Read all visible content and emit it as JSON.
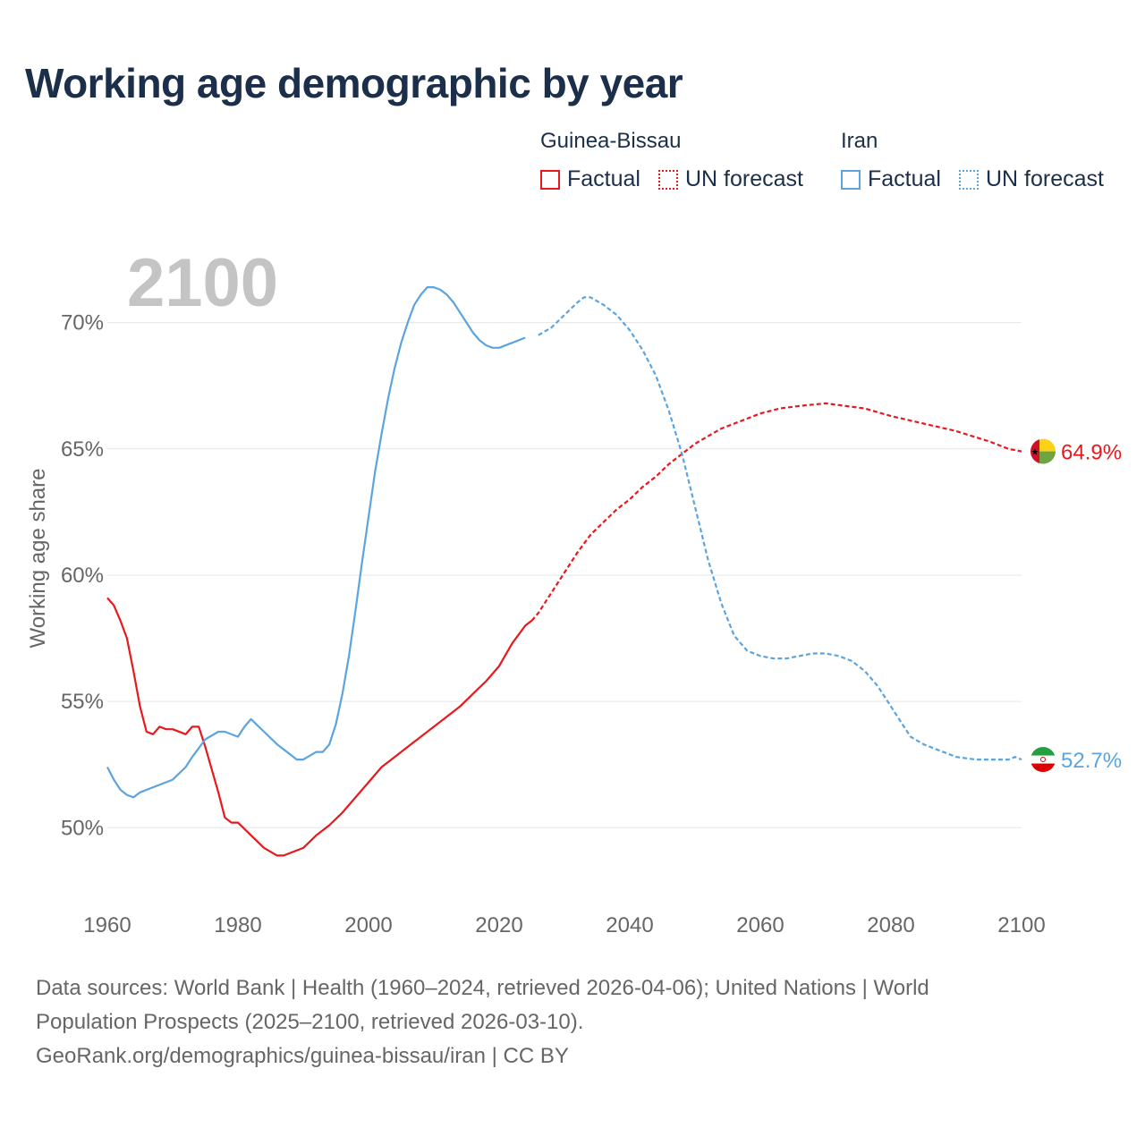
{
  "title": "Working age demographic by year",
  "legend": {
    "groups": [
      {
        "country": "Guinea-Bissau",
        "factual": "Factual",
        "forecast": "UN forecast",
        "color": "#e8191d"
      },
      {
        "country": "Iran",
        "factual": "Factual",
        "forecast": "UN forecast",
        "color": "#5ba4e0"
      }
    ]
  },
  "year_watermark": "2100",
  "sources": {
    "line1": "Data sources: World Bank | Health (1960–2024, retrieved 2026-04-06); United Nations | World",
    "line2": "Population Prospects (2025–2100, retrieved 2026-03-10).",
    "line3": "GeoRank.org/demographics/guinea-bissau/iran | CC BY"
  },
  "chart_data": {
    "type": "line",
    "title": "Working age demographic by year",
    "ylabel": "Working age share",
    "xlabel": "",
    "xlim": [
      1960,
      2100
    ],
    "ylim": [
      47,
      72.5
    ],
    "x_ticks": [
      1960,
      1980,
      2000,
      2020,
      2040,
      2060,
      2080,
      2100
    ],
    "y_ticks": [
      50,
      55,
      60,
      65,
      70
    ],
    "y_tick_labels": [
      "50%",
      "55%",
      "60%",
      "65%",
      "70%"
    ],
    "factual_until": 2025,
    "grid": true,
    "series": [
      {
        "name": "Guinea-Bissau",
        "color": "#e8191d",
        "end_label": "64.9%",
        "points": [
          [
            1960,
            59.1
          ],
          [
            1961,
            58.8
          ],
          [
            1962,
            58.2
          ],
          [
            1963,
            57.5
          ],
          [
            1964,
            56.2
          ],
          [
            1965,
            54.8
          ],
          [
            1966,
            53.8
          ],
          [
            1967,
            53.7
          ],
          [
            1968,
            54.0
          ],
          [
            1969,
            53.9
          ],
          [
            1970,
            53.9
          ],
          [
            1972,
            53.7
          ],
          [
            1973,
            54.0
          ],
          [
            1974,
            54.0
          ],
          [
            1975,
            53.2
          ],
          [
            1976,
            52.3
          ],
          [
            1977,
            51.4
          ],
          [
            1978,
            50.4
          ],
          [
            1979,
            50.2
          ],
          [
            1980,
            50.2
          ],
          [
            1982,
            49.7
          ],
          [
            1984,
            49.2
          ],
          [
            1986,
            48.9
          ],
          [
            1987,
            48.9
          ],
          [
            1990,
            49.2
          ],
          [
            1992,
            49.7
          ],
          [
            1994,
            50.1
          ],
          [
            1996,
            50.6
          ],
          [
            1998,
            51.2
          ],
          [
            2000,
            51.8
          ],
          [
            2002,
            52.4
          ],
          [
            2004,
            52.8
          ],
          [
            2006,
            53.2
          ],
          [
            2008,
            53.6
          ],
          [
            2010,
            54.0
          ],
          [
            2012,
            54.4
          ],
          [
            2014,
            54.8
          ],
          [
            2016,
            55.3
          ],
          [
            2018,
            55.8
          ],
          [
            2020,
            56.4
          ],
          [
            2022,
            57.3
          ],
          [
            2024,
            58.0
          ],
          [
            2025,
            58.2
          ],
          [
            2026,
            58.5
          ],
          [
            2028,
            59.3
          ],
          [
            2030,
            60.1
          ],
          [
            2032,
            60.9
          ],
          [
            2034,
            61.6
          ],
          [
            2036,
            62.1
          ],
          [
            2038,
            62.6
          ],
          [
            2040,
            63.0
          ],
          [
            2042,
            63.5
          ],
          [
            2044,
            63.9
          ],
          [
            2046,
            64.4
          ],
          [
            2048,
            64.8
          ],
          [
            2050,
            65.2
          ],
          [
            2052,
            65.5
          ],
          [
            2054,
            65.8
          ],
          [
            2056,
            66.0
          ],
          [
            2058,
            66.2
          ],
          [
            2060,
            66.4
          ],
          [
            2063,
            66.6
          ],
          [
            2066,
            66.7
          ],
          [
            2070,
            66.8
          ],
          [
            2073,
            66.7
          ],
          [
            2076,
            66.6
          ],
          [
            2080,
            66.3
          ],
          [
            2085,
            66.0
          ],
          [
            2090,
            65.7
          ],
          [
            2095,
            65.3
          ],
          [
            2098,
            65.0
          ],
          [
            2100,
            64.9
          ]
        ]
      },
      {
        "name": "Iran",
        "color": "#5ba4e0",
        "end_label": "52.7%",
        "points": [
          [
            1960,
            52.4
          ],
          [
            1961,
            51.9
          ],
          [
            1962,
            51.5
          ],
          [
            1963,
            51.3
          ],
          [
            1964,
            51.2
          ],
          [
            1965,
            51.4
          ],
          [
            1967,
            51.6
          ],
          [
            1969,
            51.8
          ],
          [
            1970,
            51.9
          ],
          [
            1972,
            52.4
          ],
          [
            1973,
            52.8
          ],
          [
            1975,
            53.5
          ],
          [
            1977,
            53.8
          ],
          [
            1978,
            53.8
          ],
          [
            1980,
            53.6
          ],
          [
            1981,
            54.0
          ],
          [
            1982,
            54.3
          ],
          [
            1984,
            53.8
          ],
          [
            1986,
            53.3
          ],
          [
            1988,
            52.9
          ],
          [
            1989,
            52.7
          ],
          [
            1990,
            52.7
          ],
          [
            1992,
            53.0
          ],
          [
            1993,
            53.0
          ],
          [
            1994,
            53.3
          ],
          [
            1995,
            54.1
          ],
          [
            1996,
            55.3
          ],
          [
            1997,
            56.8
          ],
          [
            1998,
            58.6
          ],
          [
            1999,
            60.5
          ],
          [
            2000,
            62.3
          ],
          [
            2001,
            64.1
          ],
          [
            2002,
            65.6
          ],
          [
            2003,
            67.0
          ],
          [
            2004,
            68.2
          ],
          [
            2005,
            69.2
          ],
          [
            2006,
            70.0
          ],
          [
            2007,
            70.7
          ],
          [
            2008,
            71.1
          ],
          [
            2009,
            71.4
          ],
          [
            2010,
            71.4
          ],
          [
            2011,
            71.3
          ],
          [
            2012,
            71.1
          ],
          [
            2013,
            70.8
          ],
          [
            2014,
            70.4
          ],
          [
            2015,
            70.0
          ],
          [
            2016,
            69.6
          ],
          [
            2017,
            69.3
          ],
          [
            2018,
            69.1
          ],
          [
            2019,
            69.0
          ],
          [
            2020,
            69.0
          ],
          [
            2022,
            69.2
          ],
          [
            2024,
            69.4
          ],
          [
            2026,
            69.5
          ],
          [
            2028,
            69.8
          ],
          [
            2030,
            70.3
          ],
          [
            2032,
            70.8
          ],
          [
            2033,
            71.0
          ],
          [
            2034,
            71.0
          ],
          [
            2036,
            70.7
          ],
          [
            2038,
            70.3
          ],
          [
            2040,
            69.7
          ],
          [
            2042,
            68.9
          ],
          [
            2044,
            67.9
          ],
          [
            2046,
            66.5
          ],
          [
            2048,
            64.8
          ],
          [
            2050,
            62.7
          ],
          [
            2052,
            60.6
          ],
          [
            2054,
            58.9
          ],
          [
            2056,
            57.6
          ],
          [
            2058,
            57.0
          ],
          [
            2060,
            56.8
          ],
          [
            2062,
            56.7
          ],
          [
            2064,
            56.7
          ],
          [
            2066,
            56.8
          ],
          [
            2068,
            56.9
          ],
          [
            2070,
            56.9
          ],
          [
            2072,
            56.8
          ],
          [
            2074,
            56.6
          ],
          [
            2076,
            56.2
          ],
          [
            2078,
            55.6
          ],
          [
            2080,
            54.8
          ],
          [
            2082,
            54.0
          ],
          [
            2083,
            53.6
          ],
          [
            2085,
            53.3
          ],
          [
            2087,
            53.1
          ],
          [
            2090,
            52.8
          ],
          [
            2093,
            52.7
          ],
          [
            2095,
            52.7
          ],
          [
            2098,
            52.7
          ],
          [
            2099,
            52.8
          ],
          [
            2100,
            52.7
          ]
        ]
      }
    ]
  }
}
